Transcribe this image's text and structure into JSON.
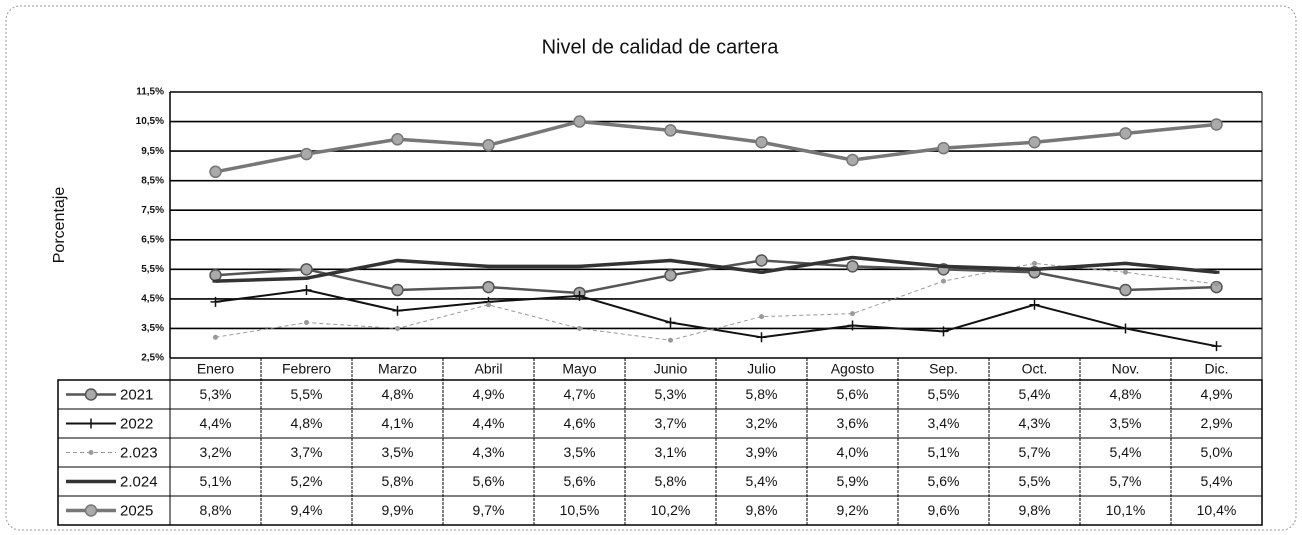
{
  "chart_data": {
    "type": "line",
    "title": "Nivel de calidad de cartera",
    "y_label": "Porcentaje",
    "categories": [
      "Enero",
      "Febrero",
      "Marzo",
      "Abril",
      "Mayo",
      "Junio",
      "Julio",
      "Agosto",
      "Sep.",
      "Oct.",
      "Nov.",
      "Dic."
    ],
    "ylim": [
      2.5,
      11.5
    ],
    "yticks": [
      {
        "value": 2.5,
        "label": "2,5%"
      },
      {
        "value": 3.5,
        "label": "3,5%"
      },
      {
        "value": 4.5,
        "label": "4,5%"
      },
      {
        "value": 5.5,
        "label": "5,5%"
      },
      {
        "value": 6.5,
        "label": "6,5%"
      },
      {
        "value": 7.5,
        "label": "7,5%"
      },
      {
        "value": 8.5,
        "label": "8,5%"
      },
      {
        "value": 9.5,
        "label": "9,5%"
      },
      {
        "value": 10.5,
        "label": "10,5%"
      },
      {
        "value": 11.5,
        "label": "11,5%"
      }
    ],
    "grid": true,
    "series": [
      {
        "name": "2021",
        "color": "#555555",
        "marker": "circle",
        "values": [
          5.3,
          5.5,
          4.8,
          4.9,
          4.7,
          5.3,
          5.8,
          5.6,
          5.5,
          5.4,
          4.8,
          4.9
        ],
        "value_labels": [
          "5,3%",
          "5,5%",
          "4,8%",
          "4,9%",
          "4,7%",
          "5,3%",
          "5,8%",
          "5,6%",
          "5,5%",
          "5,4%",
          "4,8%",
          "4,9%"
        ]
      },
      {
        "name": "2022",
        "color": "#111111",
        "marker": "plus",
        "values": [
          4.4,
          4.8,
          4.1,
          4.4,
          4.6,
          3.7,
          3.2,
          3.6,
          3.4,
          4.3,
          3.5,
          2.9
        ],
        "value_labels": [
          "4,4%",
          "4,8%",
          "4,1%",
          "4,4%",
          "4,6%",
          "3,7%",
          "3,2%",
          "3,6%",
          "3,4%",
          "4,3%",
          "3,5%",
          "2,9%"
        ]
      },
      {
        "name": "2.023",
        "color": "#999999",
        "marker": "dot",
        "values": [
          3.2,
          3.7,
          3.5,
          4.3,
          3.5,
          3.1,
          3.9,
          4.0,
          5.1,
          5.7,
          5.4,
          5.0
        ],
        "value_labels": [
          "3,2%",
          "3,7%",
          "3,5%",
          "4,3%",
          "3,5%",
          "3,1%",
          "3,9%",
          "4,0%",
          "5,1%",
          "5,7%",
          "5,4%",
          "5,0%"
        ]
      },
      {
        "name": "2.024",
        "color": "#333333",
        "marker": "none",
        "values": [
          5.1,
          5.2,
          5.8,
          5.6,
          5.6,
          5.8,
          5.4,
          5.9,
          5.6,
          5.5,
          5.7,
          5.4
        ],
        "value_labels": [
          "5,1%",
          "5,2%",
          "5,8%",
          "5,6%",
          "5,6%",
          "5,8%",
          "5,4%",
          "5,9%",
          "5,6%",
          "5,5%",
          "5,7%",
          "5,4%"
        ]
      },
      {
        "name": "2025",
        "color": "#777777",
        "marker": "circle",
        "values": [
          8.8,
          9.4,
          9.9,
          9.7,
          10.5,
          10.2,
          9.8,
          9.2,
          9.6,
          9.8,
          10.1,
          10.4
        ],
        "value_labels": [
          "8,8%",
          "9,4%",
          "9,9%",
          "9,7%",
          "10,5%",
          "10,2%",
          "9,8%",
          "9,2%",
          "9,6%",
          "9,8%",
          "10,1%",
          "10,4%"
        ]
      }
    ]
  }
}
